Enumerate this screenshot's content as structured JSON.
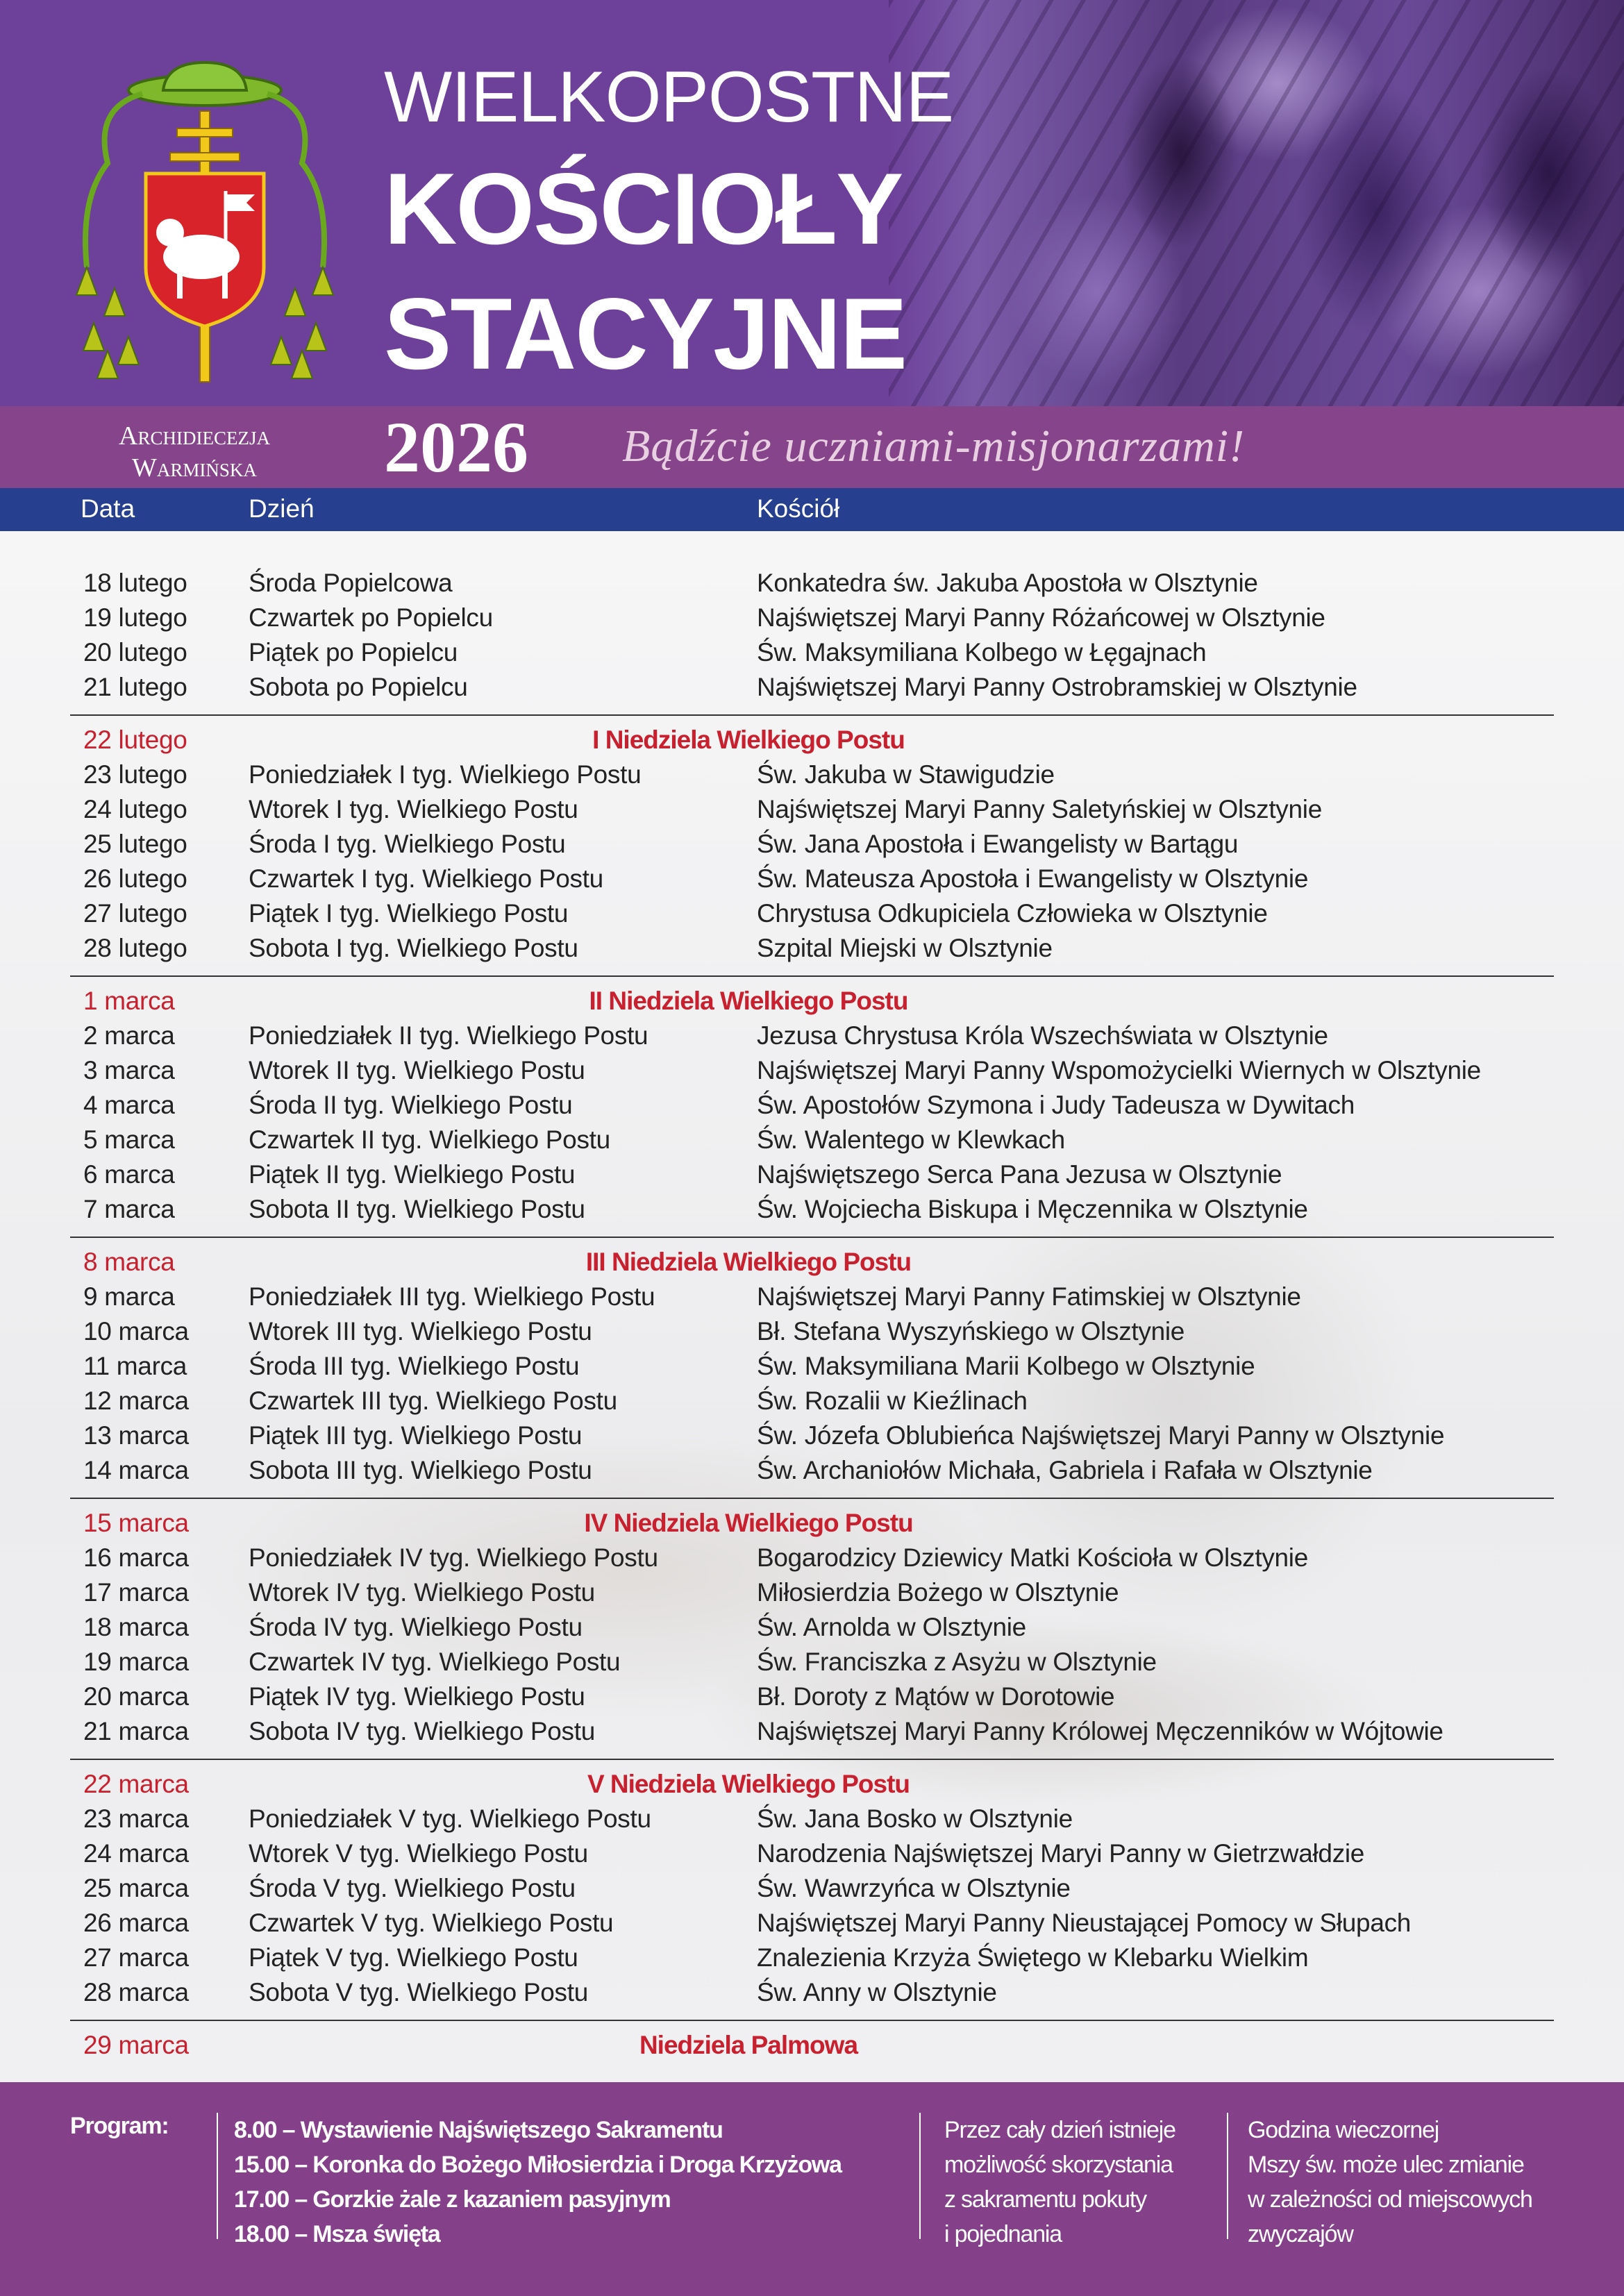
{
  "header": {
    "title_line1": "WIELKOPOSTNE",
    "title_line2": "KOŚCIOŁY",
    "title_line3": "STACYJNE",
    "archdiocese_line1": "Archidiecezja",
    "archdiocese_line2": "Warmińska",
    "year": "2026",
    "motto": "Bądźcie uczniami-misjonarzami!",
    "crest_icon": "archbishop-coat-of-arms"
  },
  "columns": {
    "date": "Data",
    "day": "Dzień",
    "church": "Kościół"
  },
  "colors": {
    "header_purple": "#6d419a",
    "band_magenta": "#86458a",
    "column_blue": "#26408f",
    "sunday_red": "#c8202f",
    "footer_purple": "#84418a"
  },
  "sections": [
    {
      "sunday": null,
      "days": [
        {
          "date": "18 lutego",
          "day": "Środa Popielcowa",
          "church": "Konkatedra św. Jakuba Apostoła w Olsztynie"
        },
        {
          "date": "19 lutego",
          "day": "Czwartek po Popielcu",
          "church": "Najświętszej Maryi Panny Różańcowej w Olsztynie"
        },
        {
          "date": "20 lutego",
          "day": "Piątek po Popielcu",
          "church": "Św. Maksymiliana Kolbego w Łęgajnach"
        },
        {
          "date": "21 lutego",
          "day": "Sobota po Popielcu",
          "church": "Najświętszej Maryi Panny Ostrobramskiej w Olsztynie"
        }
      ]
    },
    {
      "sunday": {
        "date": "22 lutego",
        "label": "I Niedziela Wielkiego Postu"
      },
      "days": [
        {
          "date": "23 lutego",
          "day": "Poniedziałek I tyg. Wielkiego Postu",
          "church": "Św. Jakuba w Stawigudzie"
        },
        {
          "date": "24 lutego",
          "day": "Wtorek I tyg. Wielkiego Postu",
          "church": "Najświętszej Maryi Panny Saletyńskiej w Olsztynie"
        },
        {
          "date": "25 lutego",
          "day": "Środa I tyg. Wielkiego Postu",
          "church": "Św. Jana Apostoła i Ewangelisty w Bartągu"
        },
        {
          "date": "26 lutego",
          "day": "Czwartek I tyg. Wielkiego Postu",
          "church": "Św. Mateusza Apostoła i Ewangelisty w Olsztynie"
        },
        {
          "date": "27 lutego",
          "day": "Piątek I tyg. Wielkiego Postu",
          "church": "Chrystusa Odkupiciela Człowieka w Olsztynie"
        },
        {
          "date": "28 lutego",
          "day": "Sobota I tyg. Wielkiego Postu",
          "church": "Szpital Miejski w Olsztynie"
        }
      ]
    },
    {
      "sunday": {
        "date": "1 marca",
        "label": "II Niedziela Wielkiego Postu"
      },
      "days": [
        {
          "date": "2 marca",
          "day": "Poniedziałek II tyg. Wielkiego Postu",
          "church": "Jezusa Chrystusa Króla Wszechświata w Olsztynie"
        },
        {
          "date": "3 marca",
          "day": "Wtorek II tyg. Wielkiego Postu",
          "church": "Najświętszej Maryi Panny Wspomożycielki Wiernych w Olsztynie"
        },
        {
          "date": "4 marca",
          "day": "Środa II tyg. Wielkiego Postu",
          "church": "Św. Apostołów Szymona i Judy Tadeusza w Dywitach"
        },
        {
          "date": "5 marca",
          "day": "Czwartek II tyg. Wielkiego Postu",
          "church": "Św. Walentego w Klewkach"
        },
        {
          "date": "6 marca",
          "day": "Piątek II tyg. Wielkiego Postu",
          "church": "Najświętszego Serca Pana Jezusa w Olsztynie"
        },
        {
          "date": "7 marca",
          "day": "Sobota II tyg. Wielkiego Postu",
          "church": "Św. Wojciecha Biskupa i Męczennika w Olsztynie"
        }
      ]
    },
    {
      "sunday": {
        "date": "8 marca",
        "label": "III Niedziela Wielkiego Postu"
      },
      "days": [
        {
          "date": "9 marca",
          "day": "Poniedziałek III tyg. Wielkiego Postu",
          "church": "Najświętszej Maryi Panny Fatimskiej w Olsztynie"
        },
        {
          "date": "10 marca",
          "day": "Wtorek III tyg. Wielkiego Postu",
          "church": "Bł. Stefana Wyszyńskiego w Olsztynie"
        },
        {
          "date": "11 marca",
          "day": "Środa III tyg. Wielkiego Postu",
          "church": "Św. Maksymiliana Marii Kolbego w Olsztynie"
        },
        {
          "date": "12 marca",
          "day": "Czwartek III tyg. Wielkiego Postu",
          "church": "Św. Rozalii w Kieźlinach"
        },
        {
          "date": "13 marca",
          "day": "Piątek III tyg. Wielkiego Postu",
          "church": "Św. Józefa Oblubieńca Najświętszej Maryi Panny w Olsztynie"
        },
        {
          "date": "14 marca",
          "day": "Sobota III tyg. Wielkiego Postu",
          "church": "Św. Archaniołów Michała, Gabriela i Rafała w Olsztynie"
        }
      ]
    },
    {
      "sunday": {
        "date": "15 marca",
        "label": "IV Niedziela Wielkiego Postu"
      },
      "days": [
        {
          "date": "16 marca",
          "day": "Poniedziałek IV tyg. Wielkiego Postu",
          "church": "Bogarodzicy Dziewicy Matki Kościoła w Olsztynie"
        },
        {
          "date": "17 marca",
          "day": "Wtorek IV tyg. Wielkiego Postu",
          "church": "Miłosierdzia Bożego w Olsztynie"
        },
        {
          "date": "18 marca",
          "day": "Środa IV tyg. Wielkiego Postu",
          "church": "Św. Arnolda w Olsztynie"
        },
        {
          "date": "19 marca",
          "day": "Czwartek IV tyg. Wielkiego Postu",
          "church": "Św. Franciszka z Asyżu w Olsztynie"
        },
        {
          "date": "20 marca",
          "day": "Piątek IV tyg. Wielkiego Postu",
          "church": "Bł. Doroty z Mątów w Dorotowie"
        },
        {
          "date": "21 marca",
          "day": "Sobota IV tyg. Wielkiego Postu",
          "church": "Najświętszej Maryi Panny Królowej Męczenników w Wójtowie"
        }
      ]
    },
    {
      "sunday": {
        "date": "22 marca",
        "label": "V Niedziela Wielkiego Postu"
      },
      "days": [
        {
          "date": "23 marca",
          "day": "Poniedziałek V tyg. Wielkiego Postu",
          "church": "Św. Jana Bosko w Olsztynie"
        },
        {
          "date": "24 marca",
          "day": "Wtorek V tyg. Wielkiego Postu",
          "church": "Narodzenia Najświętszej Maryi Panny w Gietrzwałdzie"
        },
        {
          "date": "25 marca",
          "day": "Środa V tyg. Wielkiego Postu",
          "church": "Św. Wawrzyńca w Olsztynie"
        },
        {
          "date": "26 marca",
          "day": "Czwartek V tyg. Wielkiego Postu",
          "church": "Najświętszej Maryi Panny Nieustającej Pomocy w Słupach"
        },
        {
          "date": "27 marca",
          "day": "Piątek V tyg. Wielkiego Postu",
          "church": "Znalezienia Krzyża Świętego w Klebarku Wielkim"
        },
        {
          "date": "28 marca",
          "day": "Sobota V tyg. Wielkiego Postu",
          "church": "Św. Anny w Olsztynie"
        }
      ]
    },
    {
      "sunday": {
        "date": "29 marca",
        "label": "Niedziela Palmowa"
      },
      "days": []
    }
  ],
  "footer": {
    "program_label": "Program:",
    "program_items": [
      "8.00 – Wystawienie Najświętszego Sakramentu",
      "15.00 – Koronka do Bożego Miłosierdzia i Droga Krzyżowa",
      "17.00 – Gorzkie żale z kazaniem pasyjnym",
      "18.00 – Msza święta"
    ],
    "confession_note": [
      "Przez cały dzień istnieje",
      "możliwość skorzystania",
      "z sakramentu pokuty",
      "i pojednania"
    ],
    "time_note": [
      "Godzina wieczornej",
      "Mszy św. może ulec zmianie",
      "w zależności od miejscowych",
      "zwyczajów"
    ]
  }
}
